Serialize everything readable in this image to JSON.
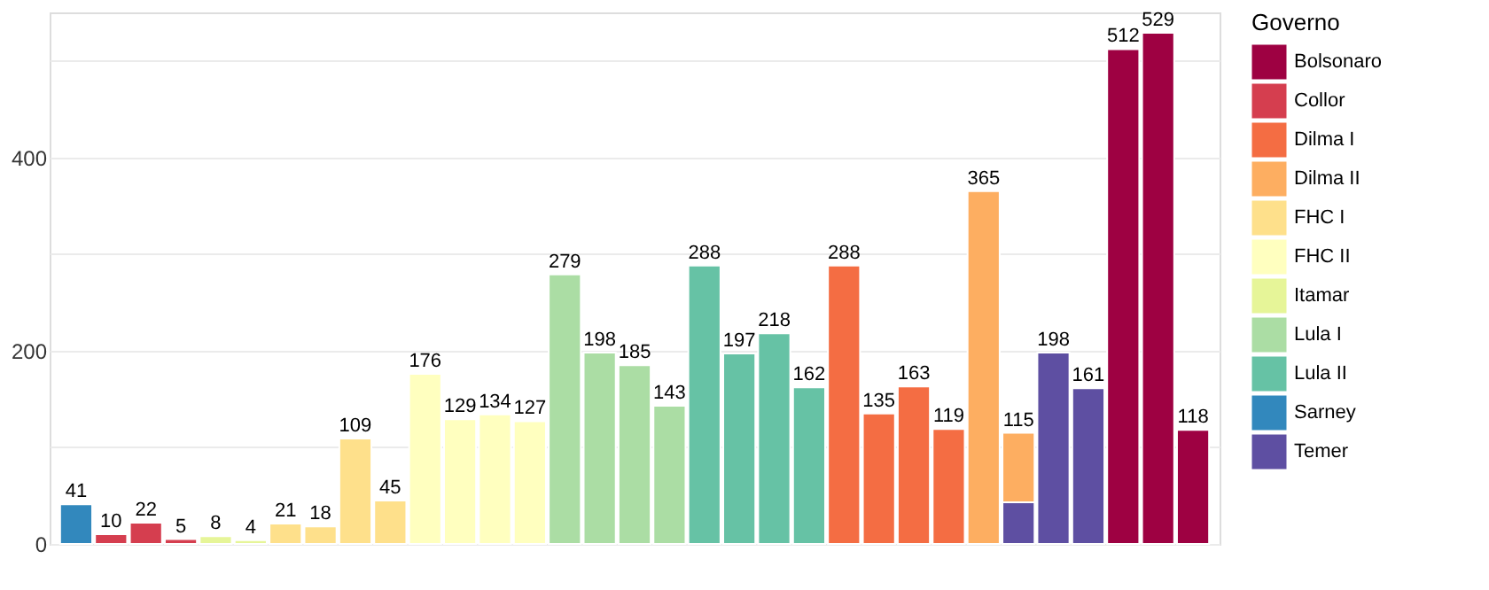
{
  "chart_data": {
    "type": "bar",
    "stacked": true,
    "legend_title": "Governo",
    "legend": "right",
    "grid": "y",
    "categories": [
      null,
      null,
      null,
      null,
      null,
      null,
      null,
      null,
      null,
      null,
      null,
      null,
      null,
      null,
      null,
      null,
      null,
      null,
      null,
      null,
      null,
      null,
      null,
      null,
      null,
      null,
      null,
      null,
      null,
      null,
      null,
      null,
      null
    ],
    "series": [
      {
        "name": "Sarney",
        "color": "#3288bd",
        "values": [
          41,
          null,
          null,
          null,
          null,
          null,
          null,
          null,
          null,
          null,
          null,
          null,
          null,
          null,
          null,
          null,
          null,
          null,
          null,
          null,
          null,
          null,
          null,
          null,
          null,
          null,
          null,
          null,
          null,
          null,
          null,
          null,
          null
        ]
      },
      {
        "name": "Collor",
        "color": "#d53e4f",
        "values": [
          null,
          10,
          22,
          5,
          null,
          null,
          null,
          null,
          null,
          null,
          null,
          null,
          null,
          null,
          null,
          null,
          null,
          null,
          null,
          null,
          null,
          null,
          null,
          null,
          null,
          null,
          null,
          null,
          null,
          null,
          null,
          null,
          null
        ]
      },
      {
        "name": "Itamar",
        "color": "#e6f598",
        "values": [
          null,
          null,
          null,
          null,
          8,
          4,
          null,
          null,
          null,
          null,
          null,
          null,
          null,
          null,
          null,
          null,
          null,
          null,
          null,
          null,
          null,
          null,
          null,
          null,
          null,
          null,
          null,
          null,
          null,
          null,
          null,
          null,
          null
        ]
      },
      {
        "name": "FHC I",
        "color": "#fee08b",
        "values": [
          null,
          null,
          null,
          null,
          null,
          null,
          21,
          18,
          109,
          45,
          null,
          null,
          null,
          null,
          null,
          null,
          null,
          null,
          null,
          null,
          null,
          null,
          null,
          null,
          null,
          null,
          null,
          null,
          null,
          null,
          null,
          null,
          null
        ]
      },
      {
        "name": "FHC II",
        "color": "#ffffbf",
        "values": [
          null,
          null,
          null,
          null,
          null,
          null,
          null,
          null,
          null,
          null,
          176,
          129,
          134,
          127,
          null,
          null,
          null,
          null,
          null,
          null,
          null,
          null,
          null,
          null,
          null,
          null,
          null,
          null,
          null,
          null,
          null,
          null,
          null
        ]
      },
      {
        "name": "Lula I",
        "color": "#abdda4",
        "values": [
          null,
          null,
          null,
          null,
          null,
          null,
          null,
          null,
          null,
          null,
          null,
          null,
          null,
          null,
          279,
          198,
          185,
          143,
          null,
          null,
          null,
          null,
          null,
          null,
          null,
          null,
          null,
          null,
          null,
          null,
          null,
          null,
          null
        ]
      },
      {
        "name": "Lula II",
        "color": "#66c2a5",
        "values": [
          null,
          null,
          null,
          null,
          null,
          null,
          null,
          null,
          null,
          null,
          null,
          null,
          null,
          null,
          null,
          null,
          null,
          null,
          288,
          197,
          218,
          162,
          null,
          null,
          null,
          null,
          null,
          null,
          null,
          null,
          null,
          null,
          null
        ]
      },
      {
        "name": "Dilma I",
        "color": "#f46d43",
        "values": [
          null,
          null,
          null,
          null,
          null,
          null,
          null,
          null,
          null,
          null,
          null,
          null,
          null,
          null,
          null,
          null,
          null,
          null,
          null,
          null,
          null,
          null,
          288,
          135,
          163,
          119,
          null,
          null,
          null,
          null,
          null,
          null,
          null
        ]
      },
      {
        "name": "Temer",
        "color": "#5e4fa2",
        "values": [
          null,
          null,
          null,
          null,
          null,
          null,
          null,
          null,
          null,
          null,
          null,
          null,
          null,
          null,
          null,
          null,
          null,
          null,
          null,
          null,
          null,
          null,
          null,
          null,
          null,
          null,
          null,
          43,
          198,
          161,
          null,
          null,
          null
        ]
      },
      {
        "name": "Dilma II",
        "color": "#fdae61",
        "values": [
          null,
          null,
          null,
          null,
          null,
          null,
          null,
          null,
          null,
          null,
          null,
          null,
          null,
          null,
          null,
          null,
          null,
          null,
          null,
          null,
          null,
          null,
          null,
          null,
          null,
          null,
          365,
          72,
          null,
          null,
          null,
          null,
          null
        ]
      },
      {
        "name": "Bolsonaro",
        "color": "#9e0142",
        "values": [
          null,
          null,
          null,
          null,
          null,
          null,
          null,
          null,
          null,
          null,
          null,
          null,
          null,
          null,
          null,
          null,
          null,
          null,
          null,
          null,
          null,
          null,
          null,
          null,
          null,
          null,
          null,
          null,
          null,
          null,
          512,
          529,
          118
        ]
      }
    ],
    "totals": [
      "41",
      "10",
      "22",
      "5",
      "8",
      "4",
      "21",
      "18",
      "109",
      "45",
      "176",
      "129",
      "134",
      "127",
      "279",
      "198",
      "185",
      "143",
      "288",
      "197",
      "218",
      "162",
      "288",
      "135",
      "163",
      "119",
      "365",
      "115",
      "198",
      "161",
      "512",
      "529",
      "118"
    ],
    "ylim": [
      0,
      550
    ],
    "yticks": [
      0,
      {
        "value": 100,
        "label": null
      },
      200,
      {
        "value": 300,
        "label": null
      },
      400,
      {
        "value": 500,
        "label": null
      }
    ]
  }
}
